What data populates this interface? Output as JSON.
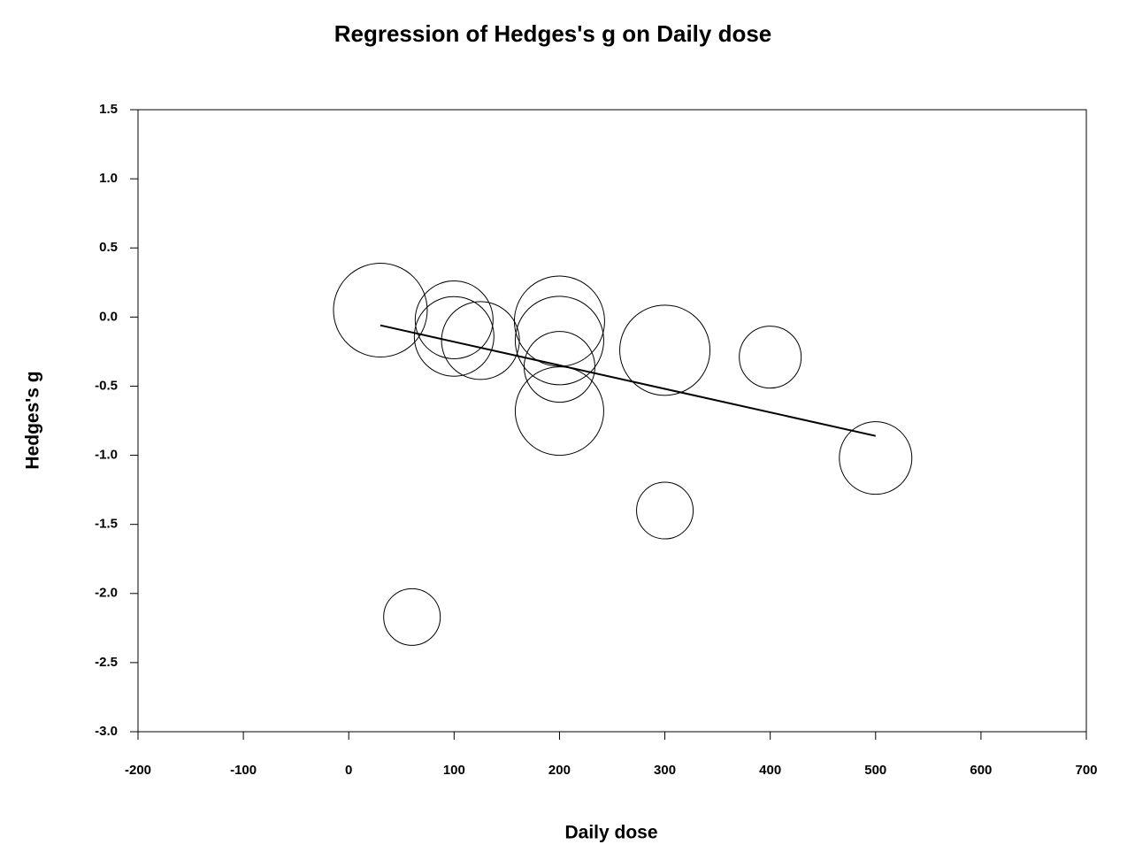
{
  "chart_data": {
    "type": "bubble",
    "title": "Regression of Hedges's g on Daily dose",
    "x_label": "Daily dose",
    "y_label": "Hedges's g",
    "xlim": [
      -200,
      700
    ],
    "xticks": [
      -200,
      -100,
      0,
      100,
      200,
      300,
      400,
      500,
      600,
      700
    ],
    "ylim": [
      -3,
      1.5
    ],
    "yticks": [
      1.5,
      {
        "value": 1,
        "label": "1.0"
      },
      0.5,
      {
        "value": 0,
        "label": "0.0"
      },
      -0.5,
      {
        "value": -1,
        "label": "-1.0"
      },
      -1.5,
      {
        "value": -2,
        "label": "-2.0"
      },
      -2.5,
      {
        "value": -3,
        "label": "-3.0"
      }
    ],
    "series": [
      {
        "color": "#000000",
        "x": [
          30,
          100,
          100,
          125,
          200,
          200,
          200,
          200,
          300,
          400,
          500,
          300,
          60
        ],
        "y": [
          0.05,
          -0.02,
          -0.14,
          -0.17,
          -0.03,
          -0.17,
          -0.36,
          -0.68,
          -0.24,
          -0.29,
          -1.02,
          -1.4,
          -2.17
        ],
        "sizes": [
          53,
          44,
          45,
          44,
          51,
          50,
          40,
          50,
          51,
          35,
          41,
          32,
          32
        ]
      }
    ],
    "regression_line": {
      "color": "#000000",
      "x": [
        30,
        500
      ],
      "y": [
        -0.06,
        -0.86
      ]
    }
  }
}
